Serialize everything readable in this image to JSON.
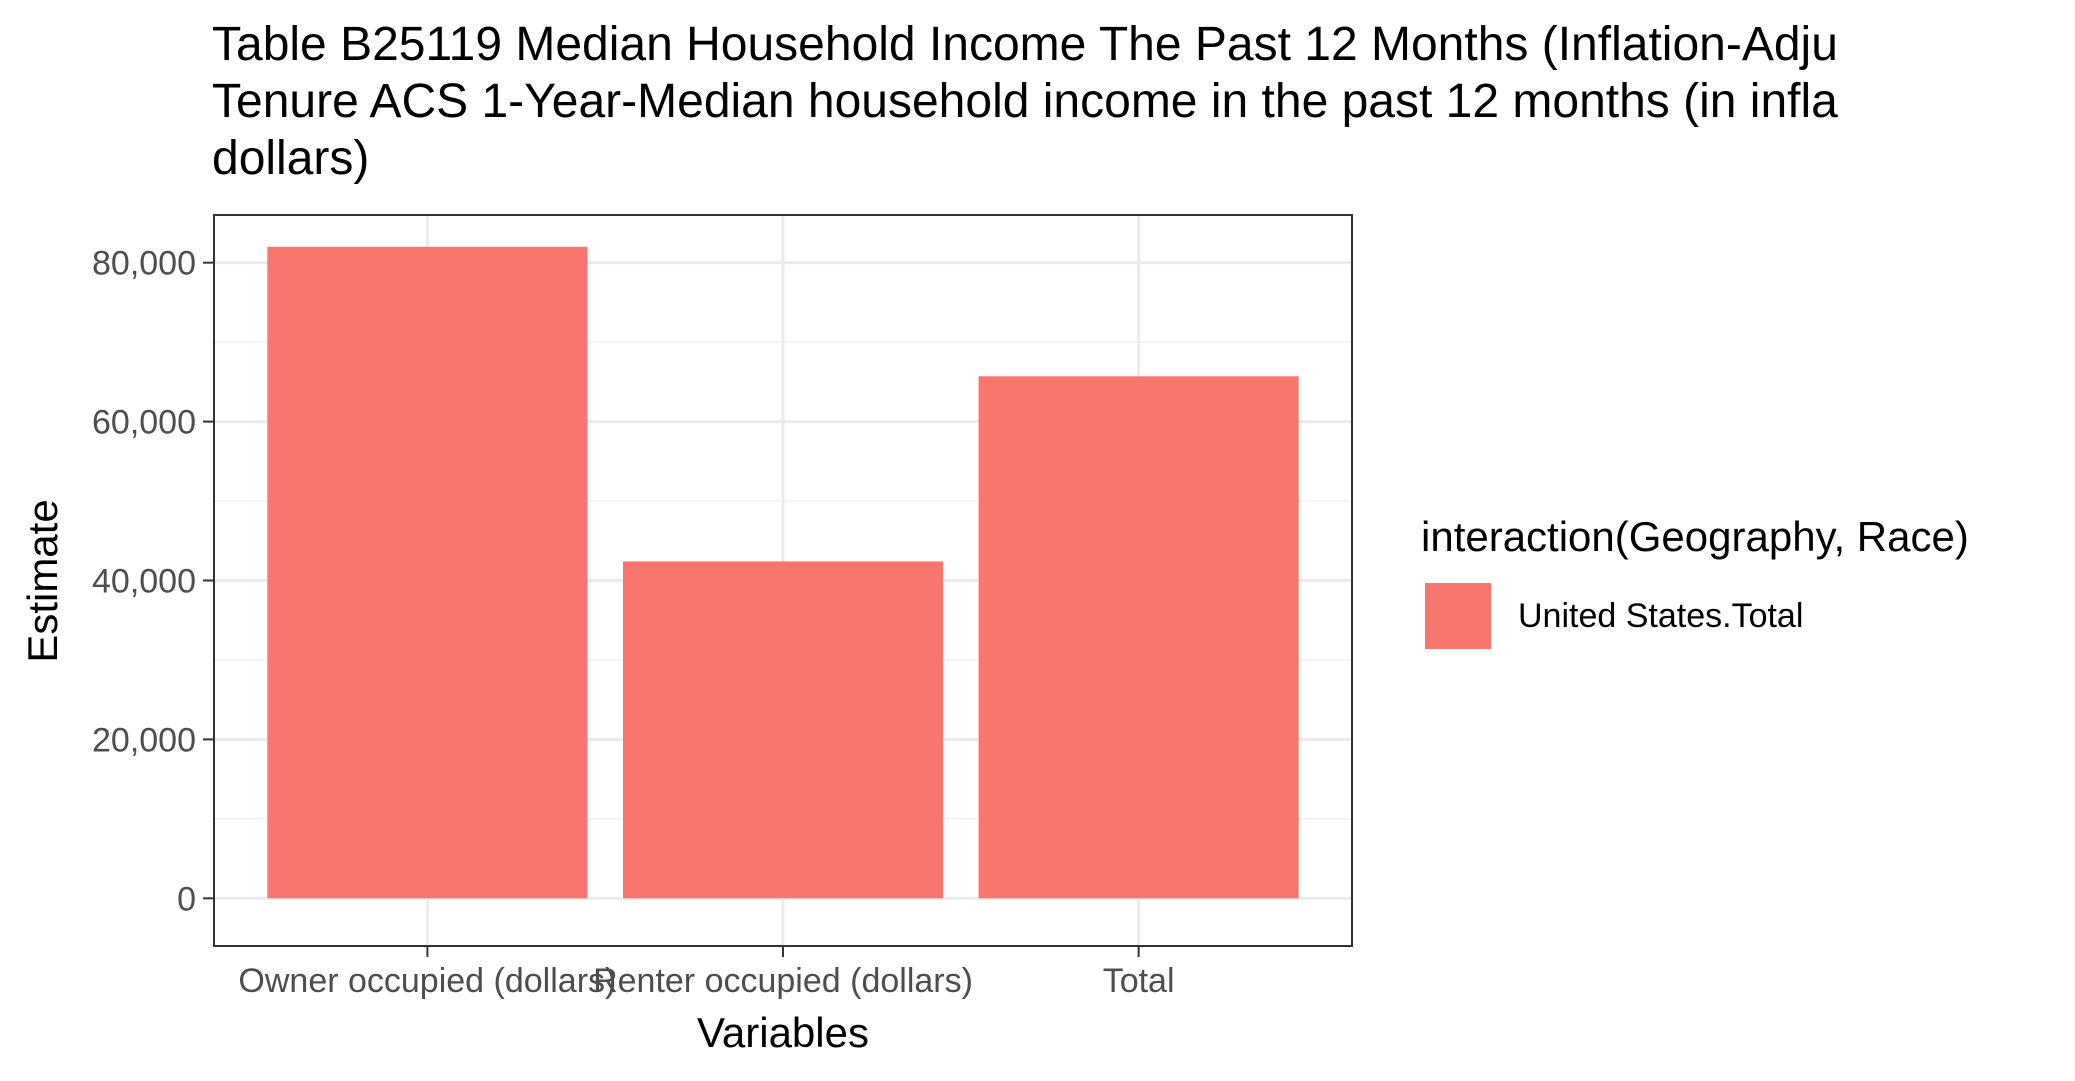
{
  "chart_data": {
    "type": "bar",
    "title_lines": [
      "Table B25119 Median Household Income The Past 12 Months (Inflation-Adju",
      "Tenure ACS 1-Year-Median household income in the past 12 months (in infla",
      "dollars)"
    ],
    "xlabel": "Variables",
    "ylabel": "Estimate",
    "categories": [
      "Owner occupied (dollars)",
      "Renter occupied (dollars)",
      "Total"
    ],
    "series": [
      {
        "name": "United States.Total",
        "values": [
          82000,
          42400,
          65700
        ],
        "color": "#F8766D"
      }
    ],
    "ylim": [
      -6000,
      86000
    ],
    "yticks": [
      0,
      20000,
      40000,
      60000,
      80000
    ],
    "ytick_labels": [
      "0",
      "20,000",
      "40,000",
      "60,000",
      "80,000"
    ],
    "legend": {
      "title": "interaction(Geography, Race)",
      "position": "right"
    },
    "grid": true
  }
}
